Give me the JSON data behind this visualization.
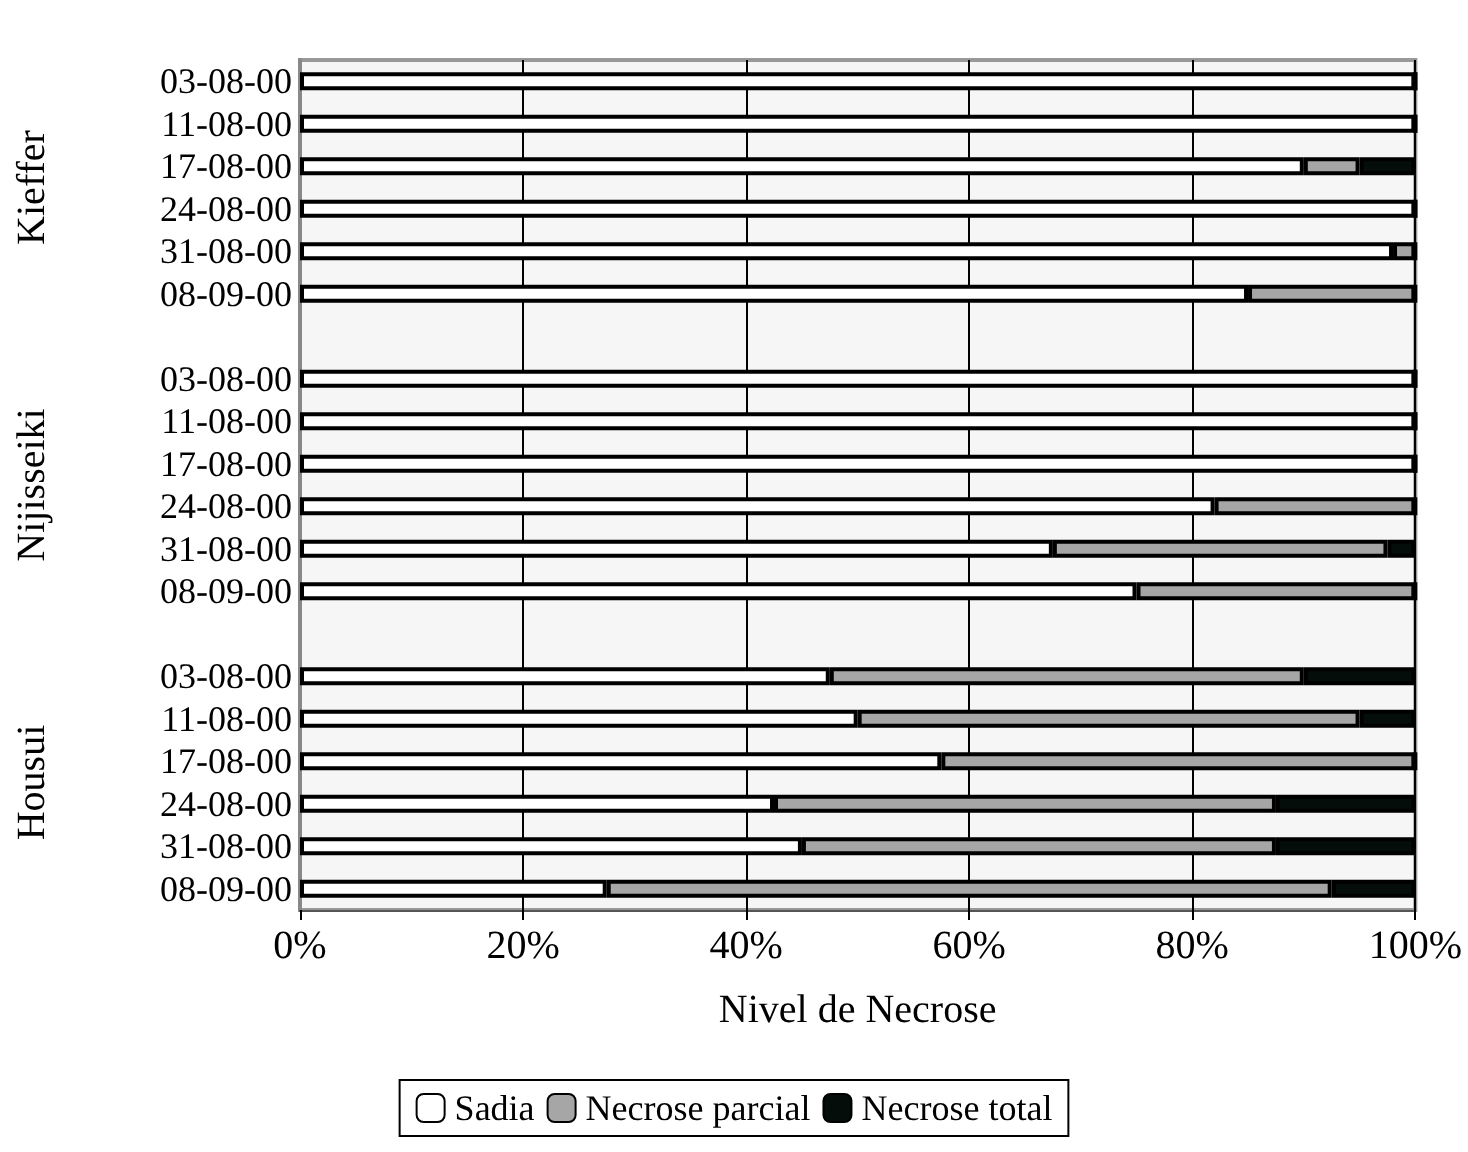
{
  "chart_data": {
    "type": "bar",
    "orientation": "horizontal",
    "stacked": true,
    "xlabel": "Nivel de Necrose",
    "annotations": [
      "Kieffer",
      "Nijisseiki",
      "Housui"
    ],
    "categories": [
      "03-08-00",
      "11-08-00",
      "17-08-00",
      "24-08-00",
      "31-08-00",
      "08-09-00",
      null,
      "03-08-00",
      "11-08-00",
      "17-08-00",
      "24-08-00",
      "31-08-00",
      "08-09-00",
      null,
      "03-08-00",
      "11-08-00",
      "17-08-00",
      "24-08-00",
      "31-08-00",
      "08-09-00"
    ],
    "series": [
      {
        "name": "Sadia",
        "color": "#ffffff",
        "values": [
          100,
          100,
          90,
          100,
          98,
          85,
          null,
          100,
          100,
          100,
          82,
          67.5,
          75,
          null,
          47.5,
          50,
          57.5,
          42.5,
          45,
          27.5
        ]
      },
      {
        "name": "Necrose parcial",
        "color": "#a6a6a6",
        "values": [
          0,
          0,
          5,
          0,
          2,
          15,
          null,
          0,
          0,
          0,
          18,
          30,
          25,
          null,
          42.5,
          45,
          42.5,
          45,
          42.5,
          65
        ]
      },
      {
        "name": "Necrose total",
        "color": "#050d0b",
        "values": [
          0,
          0,
          5,
          0,
          0,
          0,
          null,
          0,
          0,
          0,
          0,
          2.5,
          0,
          null,
          10,
          5,
          0,
          12.5,
          12.5,
          7.5
        ]
      }
    ],
    "xlim": [
      0,
      100
    ],
    "xticks": [
      {
        "value": 0,
        "label": "0%"
      },
      {
        "value": 20,
        "label": "20%"
      },
      {
        "value": 40,
        "label": "40%"
      },
      {
        "value": 60,
        "label": "60%"
      },
      {
        "value": 80,
        "label": "80%"
      },
      {
        "value": 100,
        "label": "100%"
      }
    ],
    "grid": "x",
    "legend": "bottom"
  }
}
